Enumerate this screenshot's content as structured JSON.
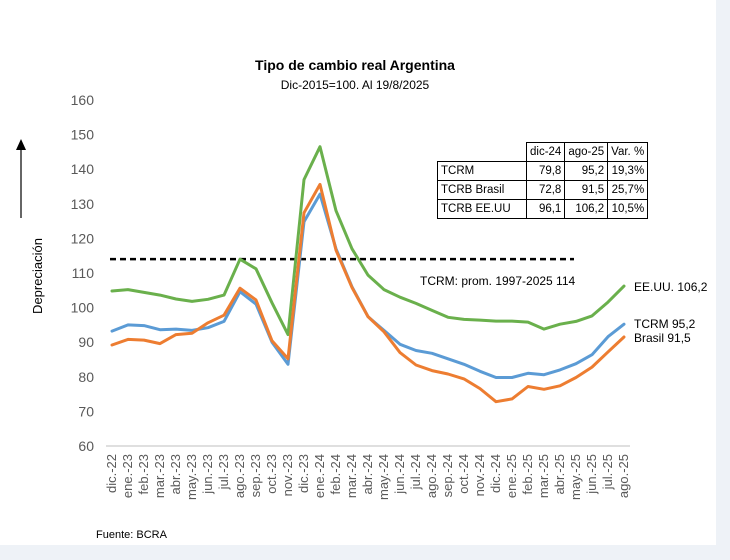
{
  "title": "Tipo de cambio real Argentina",
  "subtitle": "Dic-2015=100. Al 19/8/2025",
  "source": "Fuente: BCRA",
  "colors": {
    "eeuu": "#6ab04c",
    "tcrm": "#5b9bd5",
    "brasil": "#ed7d31",
    "average": "#000000"
  },
  "chart_data": {
    "type": "line",
    "ylabel": "Depreciación",
    "ylim": [
      60,
      160
    ],
    "yticks": [
      60,
      70,
      80,
      90,
      100,
      110,
      120,
      130,
      140,
      150,
      160
    ],
    "grid": false,
    "categories": [
      "dic.-22",
      "ene.-23",
      "feb.-23",
      "mar.-23",
      "abr.-23",
      "may.-23",
      "jun.-23",
      "jul.-23",
      "ago.-23",
      "sep.-23",
      "oct.-23",
      "nov.-23",
      "dic.-23",
      "ene.-24",
      "feb.-24",
      "mar.-24",
      "abr.-24",
      "may.-24",
      "jun.-24",
      "jul.-24",
      "ago.-24",
      "sep.-24",
      "oct.-24",
      "nov.-24",
      "dic.-24",
      "ene.-25",
      "feb.-25",
      "mar.-25",
      "abr.-25",
      "may.-25",
      "jun.-25",
      "jul.-25",
      "ago.-25"
    ],
    "series": [
      {
        "key": "eeuu",
        "values": [
          104.8,
          105.2,
          104.4,
          103.6,
          102.5,
          101.8,
          102.4,
          103.6,
          114.0,
          111.2,
          101.4,
          92.2,
          137.0,
          146.5,
          128.0,
          117.0,
          109.4,
          105.2,
          103.0,
          101.2,
          99.2,
          97.2,
          96.6,
          96.4,
          96.1,
          96.1,
          95.8,
          93.8,
          95.2,
          96.0,
          97.6,
          101.6,
          106.2
        ]
      },
      {
        "key": "tcrm",
        "values": [
          93.2,
          95.0,
          94.8,
          93.6,
          93.8,
          93.4,
          94.2,
          96.0,
          104.6,
          101.0,
          90.0,
          83.6,
          124.8,
          132.8,
          117.0,
          106.0,
          97.4,
          93.4,
          89.4,
          87.6,
          86.8,
          85.2,
          83.6,
          81.6,
          79.8,
          79.8,
          81.0,
          80.6,
          82.0,
          83.8,
          86.4,
          91.6,
          95.2
        ]
      },
      {
        "key": "brasil",
        "values": [
          89.2,
          90.8,
          90.6,
          89.6,
          92.2,
          92.6,
          95.6,
          97.8,
          105.6,
          102.2,
          90.4,
          85.2,
          127.4,
          135.6,
          116.6,
          105.8,
          97.4,
          93.0,
          87.0,
          83.4,
          81.8,
          80.8,
          79.4,
          76.6,
          72.8,
          73.6,
          77.2,
          76.4,
          77.4,
          79.8,
          82.8,
          87.2,
          91.5
        ]
      }
    ],
    "average_line": {
      "value": 114,
      "label": "TCRM: prom. 1997-2025 114"
    },
    "end_labels": [
      "EE.UU. 106,2",
      "TCRM 95,2",
      "Brasil 91,5"
    ]
  },
  "table": {
    "headers": [
      "",
      "dic-24",
      "ago-25",
      "Var. %"
    ],
    "rows": [
      [
        "TCRM",
        "79,8",
        "95,2",
        "19,3%"
      ],
      [
        "TCRB Brasil",
        "72,8",
        "91,5",
        "25,7%"
      ],
      [
        "TCRB EE.UU",
        "96,1",
        "106,2",
        "10,5%"
      ]
    ]
  }
}
